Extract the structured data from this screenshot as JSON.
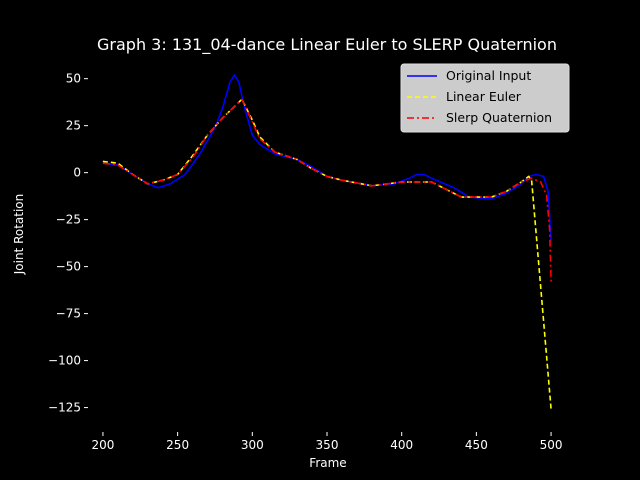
{
  "chart_data": {
    "type": "line",
    "title": "Graph 3: 131_04-dance Linear Euler to SLERP Quaternion",
    "xlabel": "Frame",
    "ylabel": "Joint Rotation",
    "xlim": [
      190,
      510
    ],
    "ylim": [
      -138,
      61
    ],
    "xticks": [
      200,
      250,
      300,
      350,
      400,
      450,
      500
    ],
    "yticks": [
      50,
      25,
      0,
      -25,
      -50,
      -75,
      -100,
      -125
    ],
    "grid": false,
    "legend_position": "top-right",
    "series": [
      {
        "name": "Original Input",
        "color": "#0000ff",
        "style": "solid",
        "x": [
          200,
          210,
          220,
          230,
          237,
          245,
          255,
          265,
          275,
          280,
          285,
          288,
          291,
          295,
          300,
          305,
          315,
          330,
          340,
          350,
          360,
          380,
          395,
          405,
          410,
          415,
          420,
          435,
          445,
          460,
          470,
          480,
          485,
          490,
          495,
          498,
          500
        ],
        "y": [
          5,
          4,
          -1,
          -6,
          -8,
          -6,
          -1,
          10,
          24,
          34,
          48,
          52,
          48,
          34,
          20,
          15,
          10,
          7,
          3,
          -2,
          -4,
          -7,
          -6,
          -3,
          -1,
          -1,
          -3,
          -8,
          -13,
          -14,
          -11,
          -6,
          -2,
          -1,
          -2,
          -10,
          -37
        ]
      },
      {
        "name": "Linear Euler",
        "color": "#ffff00",
        "style": "dashed",
        "x": [
          200,
          210,
          220,
          230,
          240,
          250,
          260,
          270,
          280,
          293,
          300,
          305,
          315,
          330,
          340,
          350,
          360,
          380,
          400,
          420,
          440,
          460,
          470,
          480,
          485,
          487,
          500
        ],
        "y": [
          6,
          5,
          -1,
          -6,
          -4,
          -1,
          9,
          20,
          29,
          39,
          28,
          19,
          11,
          7,
          2,
          -2,
          -4,
          -7,
          -5,
          -5,
          -13,
          -13,
          -10,
          -5,
          -2,
          -4,
          -126
        ]
      },
      {
        "name": "Slerp Quaternion",
        "color": "#ff0000",
        "style": "dashdot",
        "x": [
          200,
          210,
          220,
          230,
          240,
          250,
          260,
          270,
          280,
          293,
          300,
          305,
          315,
          330,
          340,
          350,
          360,
          380,
          400,
          420,
          440,
          460,
          470,
          480,
          487,
          493,
          497,
          499,
          500
        ],
        "y": [
          5,
          4,
          -1,
          -6,
          -4,
          -1,
          8,
          20,
          29,
          39,
          27,
          18,
          11,
          7,
          2,
          -2,
          -4,
          -7,
          -5,
          -5,
          -13,
          -13,
          -10,
          -5,
          -3,
          -5,
          -12,
          -30,
          -58
        ]
      }
    ]
  }
}
